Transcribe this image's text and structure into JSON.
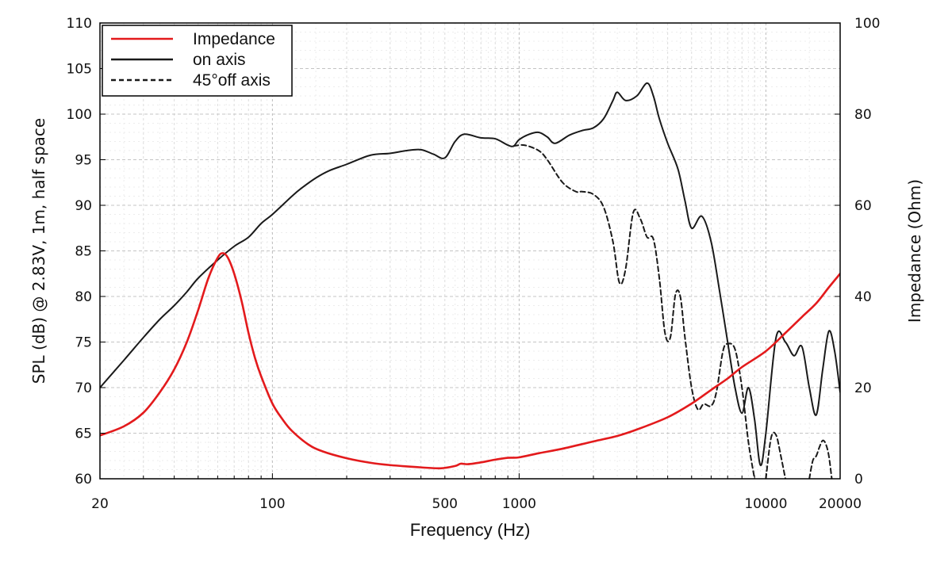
{
  "chart_data": {
    "type": "line",
    "title": "",
    "xlabel": "Frequency (Hz)",
    "ylabel": "SPL (dB) @ 2.83V, 1m, half space",
    "y2label": "Impedance (Ohm)",
    "xscale": "log",
    "xlim": [
      20,
      20000
    ],
    "ylim": [
      60,
      110
    ],
    "y2lim": [
      0,
      100
    ],
    "grid": true,
    "legend_position": "top-left",
    "x_ticks": [
      {
        "value": 20,
        "label": "20"
      },
      {
        "value": 100,
        "label": "100"
      },
      {
        "value": 500,
        "label": "500"
      },
      {
        "value": 1000,
        "label": "1000"
      },
      {
        "value": 10000,
        "label": "10000"
      },
      {
        "value": 20000,
        "label": "20000"
      }
    ],
    "y_ticks": [
      60,
      65,
      70,
      75,
      80,
      85,
      90,
      95,
      100,
      105,
      110
    ],
    "y2_ticks": [
      0,
      20,
      40,
      60,
      80,
      100
    ],
    "series": [
      {
        "name": "Impedance",
        "axis": "right",
        "color": "#e31a1c",
        "style": "solid",
        "points": [
          [
            20,
            9.5
          ],
          [
            25,
            11.5
          ],
          [
            30,
            14.5
          ],
          [
            35,
            19
          ],
          [
            40,
            24
          ],
          [
            45,
            30
          ],
          [
            50,
            37
          ],
          [
            55,
            44
          ],
          [
            60,
            48.5
          ],
          [
            63,
            49.5
          ],
          [
            66,
            48.5
          ],
          [
            70,
            45
          ],
          [
            75,
            39
          ],
          [
            80,
            32
          ],
          [
            85,
            26.5
          ],
          [
            90,
            22.5
          ],
          [
            100,
            16.5
          ],
          [
            110,
            13
          ],
          [
            120,
            10.5
          ],
          [
            140,
            7.5
          ],
          [
            160,
            6
          ],
          [
            200,
            4.5
          ],
          [
            250,
            3.5
          ],
          [
            300,
            3
          ],
          [
            400,
            2.5
          ],
          [
            480,
            2.3
          ],
          [
            550,
            2.8
          ],
          [
            580,
            3.3
          ],
          [
            620,
            3.2
          ],
          [
            700,
            3.6
          ],
          [
            800,
            4.2
          ],
          [
            900,
            4.6
          ],
          [
            1000,
            4.7
          ],
          [
            1200,
            5.6
          ],
          [
            1500,
            6.6
          ],
          [
            2000,
            8.2
          ],
          [
            2500,
            9.4
          ],
          [
            3000,
            10.8
          ],
          [
            4000,
            13.5
          ],
          [
            5000,
            16.5
          ],
          [
            6000,
            19.5
          ],
          [
            7000,
            22
          ],
          [
            8000,
            24.5
          ],
          [
            10000,
            28
          ],
          [
            12000,
            32
          ],
          [
            14000,
            35.5
          ],
          [
            16000,
            38.5
          ],
          [
            18000,
            42
          ],
          [
            20000,
            45
          ]
        ]
      },
      {
        "name": "on axis",
        "axis": "left",
        "color": "#1a1a1a",
        "style": "solid",
        "points": [
          [
            20,
            70
          ],
          [
            25,
            73
          ],
          [
            30,
            75.5
          ],
          [
            35,
            77.5
          ],
          [
            40,
            79
          ],
          [
            45,
            80.5
          ],
          [
            50,
            82
          ],
          [
            60,
            84
          ],
          [
            70,
            85.5
          ],
          [
            80,
            86.5
          ],
          [
            90,
            88
          ],
          [
            100,
            89
          ],
          [
            120,
            91
          ],
          [
            130,
            91.8
          ],
          [
            150,
            93
          ],
          [
            170,
            93.8
          ],
          [
            200,
            94.5
          ],
          [
            250,
            95.5
          ],
          [
            300,
            95.7
          ],
          [
            350,
            96
          ],
          [
            400,
            96.1
          ],
          [
            450,
            95.6
          ],
          [
            500,
            95.2
          ],
          [
            550,
            97
          ],
          [
            600,
            97.8
          ],
          [
            700,
            97.4
          ],
          [
            800,
            97.3
          ],
          [
            900,
            96.6
          ],
          [
            950,
            96.5
          ],
          [
            1000,
            97.2
          ],
          [
            1100,
            97.8
          ],
          [
            1200,
            98
          ],
          [
            1300,
            97.5
          ],
          [
            1400,
            96.8
          ],
          [
            1600,
            97.7
          ],
          [
            1800,
            98.2
          ],
          [
            2000,
            98.5
          ],
          [
            2200,
            99.5
          ],
          [
            2400,
            101.5
          ],
          [
            2500,
            102.4
          ],
          [
            2700,
            101.5
          ],
          [
            3000,
            102
          ],
          [
            3300,
            103.4
          ],
          [
            3500,
            102
          ],
          [
            3700,
            99.5
          ],
          [
            4000,
            96.8
          ],
          [
            4400,
            94
          ],
          [
            4700,
            90.5
          ],
          [
            5000,
            87.5
          ],
          [
            5500,
            88.8
          ],
          [
            6000,
            86
          ],
          [
            6500,
            80.5
          ],
          [
            7000,
            75
          ],
          [
            7500,
            70
          ],
          [
            8000,
            67.2
          ],
          [
            8500,
            70
          ],
          [
            9000,
            66.5
          ],
          [
            9500,
            61.5
          ],
          [
            10000,
            65
          ],
          [
            11000,
            75.5
          ],
          [
            12000,
            75
          ],
          [
            13000,
            73.5
          ],
          [
            14000,
            74.5
          ],
          [
            15000,
            70
          ],
          [
            16000,
            67
          ],
          [
            17000,
            72
          ],
          [
            18000,
            76.2
          ],
          [
            19000,
            74
          ],
          [
            20000,
            69.5
          ]
        ]
      },
      {
        "name": "45°off axis",
        "axis": "left",
        "color": "#1a1a1a",
        "style": "dashed",
        "points": [
          [
            950,
            96.5
          ],
          [
            1050,
            96.6
          ],
          [
            1200,
            96
          ],
          [
            1300,
            95
          ],
          [
            1500,
            92.5
          ],
          [
            1700,
            91.5
          ],
          [
            1800,
            91.5
          ],
          [
            2000,
            91.2
          ],
          [
            2200,
            89.8
          ],
          [
            2400,
            86
          ],
          [
            2550,
            81.5
          ],
          [
            2700,
            83
          ],
          [
            2900,
            89.2
          ],
          [
            3100,
            88.5
          ],
          [
            3300,
            86.5
          ],
          [
            3500,
            86.3
          ],
          [
            3700,
            82
          ],
          [
            3900,
            76
          ],
          [
            4100,
            75.5
          ],
          [
            4300,
            80.2
          ],
          [
            4500,
            80
          ],
          [
            4700,
            75.5
          ],
          [
            5000,
            70
          ],
          [
            5300,
            67.6
          ],
          [
            5600,
            68.2
          ],
          [
            6000,
            68
          ],
          [
            6300,
            69.5
          ],
          [
            6700,
            74
          ],
          [
            7000,
            74.8
          ],
          [
            7500,
            74.2
          ],
          [
            8000,
            70
          ],
          [
            8500,
            64
          ],
          [
            9000,
            60
          ]
        ]
      },
      {
        "name": "45°off axis (hf)",
        "axis": "left",
        "color": "#1a1a1a",
        "style": "dashed",
        "points": [
          [
            10000,
            60
          ],
          [
            10500,
            64.5
          ],
          [
            11000,
            64.8
          ],
          [
            11500,
            62.5
          ],
          [
            12000,
            60
          ]
        ]
      },
      {
        "name": "45°off axis (hf2)",
        "axis": "left",
        "color": "#1a1a1a",
        "style": "dashed",
        "points": [
          [
            15000,
            60
          ],
          [
            15500,
            62
          ],
          [
            16000,
            62.5
          ],
          [
            16500,
            63.5
          ],
          [
            17000,
            64.2
          ],
          [
            17500,
            63.8
          ],
          [
            18000,
            62.5
          ],
          [
            18500,
            60
          ]
        ]
      }
    ],
    "legend": [
      {
        "label": "Impedance",
        "color": "#e31a1c",
        "style": "solid"
      },
      {
        "label": "on axis",
        "color": "#1a1a1a",
        "style": "solid"
      },
      {
        "label": "45°off axis",
        "color": "#1a1a1a",
        "style": "dashed"
      }
    ]
  }
}
